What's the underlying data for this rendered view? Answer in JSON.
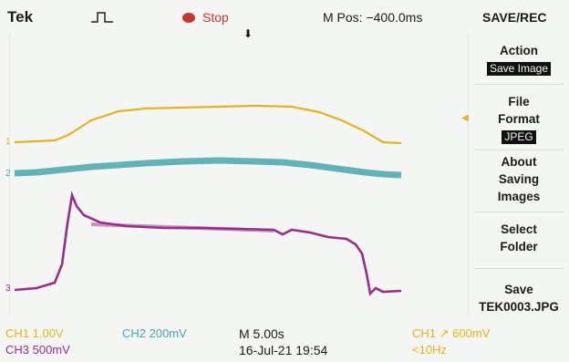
{
  "header": {
    "brand": "Tek",
    "run_state": "Stop",
    "horizontal_position": "M Pos: −400.0ms",
    "menu_title": "SAVE/REC"
  },
  "side_menu": {
    "action_label": "Action",
    "action_value": "Save Image",
    "file_format_line1": "File",
    "file_format_line2": "Format",
    "file_format_value": "JPEG",
    "about_line1": "About",
    "about_line2": "Saving",
    "about_line3": "Images",
    "select_line1": "Select",
    "select_line2": "Folder",
    "save_line1": "Save",
    "save_line2": "TEK0003.JPG"
  },
  "channels": {
    "ch1_marker": "1",
    "ch2_marker": "2",
    "ch3_marker": "3",
    "ch1_color": "#e8b21a",
    "ch2_color": "#45a7ac",
    "ch3_color": "#9b2c8c"
  },
  "status": {
    "ch1": "CH1  1.00V",
    "ch2": "CH2  200mV",
    "ch3": "CH3  500mV",
    "timebase": "M 5.00s",
    "datetime": "16-Jul-21 19:54",
    "trigger": "CH1 ↗ 600mV",
    "trigger_freq": "<10Hz"
  }
}
